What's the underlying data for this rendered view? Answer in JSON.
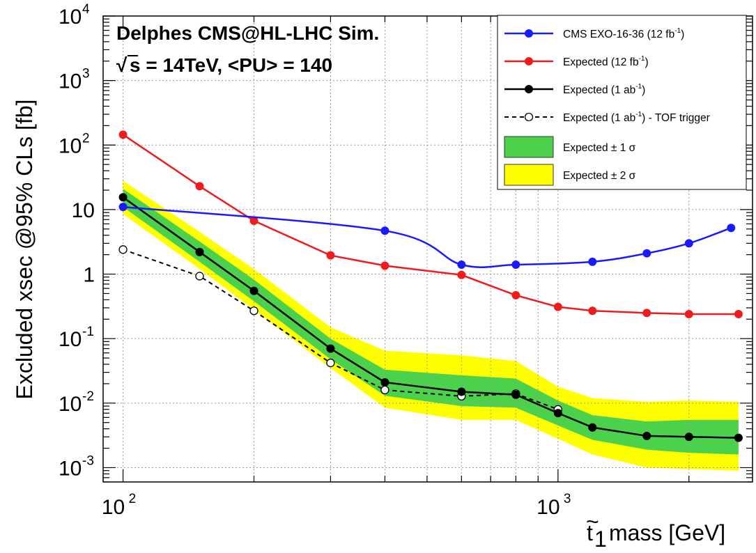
{
  "chart_data": {
    "type": "line",
    "x_scale": "log",
    "y_scale": "log",
    "xlim": [
      90,
      2800
    ],
    "ylim": [
      0.0006,
      10000
    ],
    "grid": true,
    "xlabel": "mass [GeV]",
    "xlabel_symbol": "t",
    "xlabel_subscript": "1",
    "ylabel": "Excluded xsec @95% CLs [fb]",
    "x_tick_values": [
      100,
      1000
    ],
    "x_tick_labels": [
      {
        "base": "10",
        "exp": "2"
      },
      {
        "base": "10",
        "exp": "3"
      }
    ],
    "y_ticks": [
      {
        "value": 10000,
        "base": "10",
        "exp": "4"
      },
      {
        "value": 1000,
        "base": "10",
        "exp": "3"
      },
      {
        "value": 100,
        "base": "10",
        "exp": "2"
      },
      {
        "value": 10,
        "base": "10",
        "exp": ""
      },
      {
        "value": 1,
        "base": "1",
        "exp": ""
      },
      {
        "value": 0.1,
        "base": "10",
        "exp": "-1"
      },
      {
        "value": 0.01,
        "base": "10",
        "exp": "-2"
      },
      {
        "value": 0.001,
        "base": "10",
        "exp": "-3"
      }
    ],
    "annotations": [
      {
        "text": "Delphes CMS@HL-LHC Sim."
      },
      {
        "text": "s = 14TeV, <PU> = 140",
        "prefix_symbol": "√"
      }
    ],
    "legend_position": "top-right",
    "series": [
      {
        "name": "CMS EXO-16-36 (12 fb-1)",
        "legend_text": "CMS EXO-16-36 (12 fb",
        "legend_sup": "-1",
        "legend_tail": ")",
        "color": "#1a1aff",
        "marker": "filled-circle",
        "line": "solid",
        "smooth": true,
        "x": [
          100,
          400,
          600,
          800,
          1200,
          1600,
          2000,
          2500
        ],
        "y": [
          11,
          4.7,
          1.4,
          1.4,
          1.55,
          2.1,
          3.0,
          5.2
        ]
      },
      {
        "name": "Expected (12 fb-1)",
        "legend_text": "Expected (12 fb",
        "legend_sup": "-1",
        "legend_tail": ")",
        "color": "#ee1c1c",
        "marker": "filled-circle",
        "line": "solid",
        "x": [
          100,
          150,
          200,
          300,
          400,
          600,
          800,
          1000,
          1200,
          1600,
          2000,
          2600
        ],
        "y": [
          145,
          23,
          6.7,
          1.95,
          1.35,
          0.97,
          0.47,
          0.31,
          0.27,
          0.25,
          0.24,
          0.24
        ]
      },
      {
        "name": "Expected (1 ab-1)",
        "legend_text": "Expected (1 ab",
        "legend_sup": "-1",
        "legend_tail": ")",
        "color": "#000000",
        "marker": "filled-circle",
        "line": "solid",
        "x": [
          100,
          150,
          200,
          300,
          400,
          600,
          800,
          1000,
          1200,
          1600,
          2000,
          2600
        ],
        "y": [
          15.5,
          2.2,
          0.55,
          0.07,
          0.021,
          0.015,
          0.0135,
          0.007,
          0.0042,
          0.0031,
          0.003,
          0.0029
        ]
      },
      {
        "name": "Expected (1 ab-1) - TOF trigger",
        "legend_text": "Expected (1 ab",
        "legend_sup": "-1",
        "legend_tail": ") - TOF trigger",
        "color": "#000000",
        "marker": "open-circle",
        "line": "dashed",
        "x": [
          100,
          150,
          200,
          300,
          400,
          600,
          800,
          1000
        ],
        "y": [
          2.4,
          0.93,
          0.27,
          0.042,
          0.016,
          0.0128,
          0.014,
          0.008
        ]
      }
    ],
    "bands": [
      {
        "name": "Expected ± 1 σ",
        "legend_text": "Expected ± 1 σ",
        "color": "#4cd14c",
        "x": [
          100,
          150,
          200,
          300,
          400,
          600,
          800,
          1000,
          1200,
          1600,
          2000,
          2600
        ],
        "lower": [
          11,
          1.55,
          0.38,
          0.048,
          0.013,
          0.009,
          0.0085,
          0.0045,
          0.0027,
          0.0019,
          0.0017,
          0.0016
        ],
        "upper": [
          21,
          3.2,
          0.82,
          0.1,
          0.033,
          0.027,
          0.024,
          0.011,
          0.0065,
          0.0052,
          0.0055,
          0.0055
        ]
      },
      {
        "name": "Expected ± 2 σ",
        "legend_text": "Expected ± 2 σ",
        "color": "#ffff00",
        "x": [
          100,
          150,
          200,
          300,
          400,
          600,
          800,
          1000,
          1200,
          1600,
          2000,
          2600
        ],
        "lower": [
          8.5,
          1.2,
          0.28,
          0.035,
          0.0085,
          0.0055,
          0.0055,
          0.0028,
          0.0016,
          0.001,
          0.00095,
          0.0009
        ],
        "upper": [
          28,
          4.5,
          1.2,
          0.15,
          0.065,
          0.055,
          0.045,
          0.018,
          0.012,
          0.0105,
          0.011,
          0.0105
        ]
      }
    ]
  }
}
